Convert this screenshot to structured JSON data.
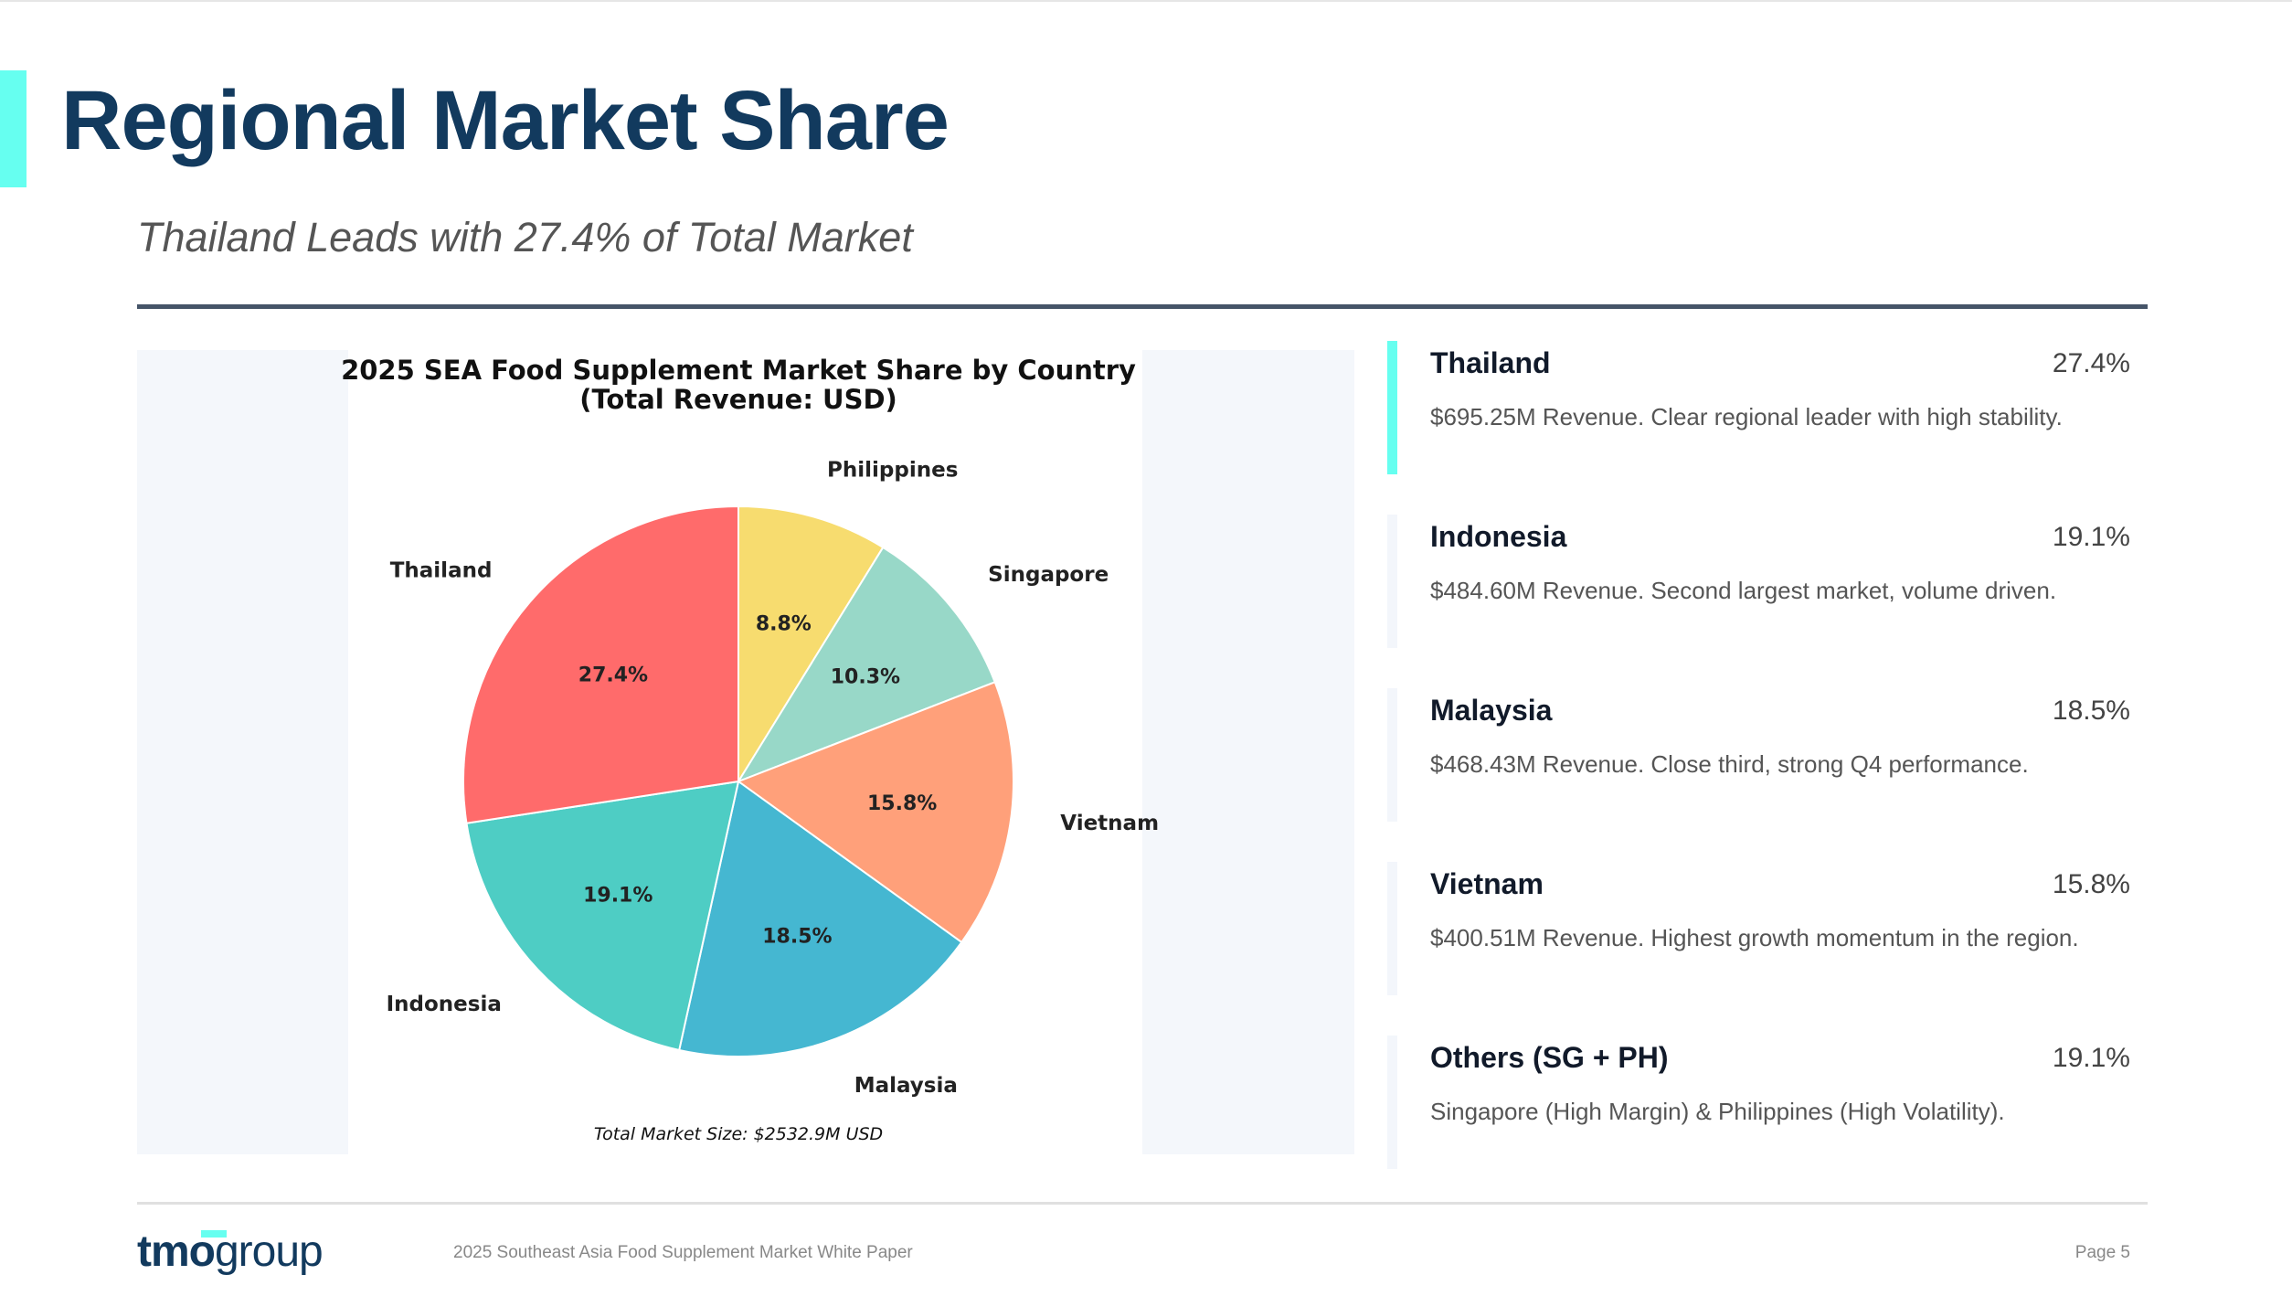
{
  "header": {
    "title": "Regional Market Share",
    "subtitle": "Thailand Leads with 27.4% of Total Market"
  },
  "chart_data": {
    "type": "pie",
    "title": "2025 SEA Food Supplement Market Share by Country",
    "subtitle": "(Total Revenue: USD)",
    "footnote": "Total Market Size: $2532.9M USD",
    "categories": [
      "Philippines",
      "Singapore",
      "Vietnam",
      "Malaysia",
      "Indonesia",
      "Thailand"
    ],
    "values": [
      8.8,
      10.3,
      15.8,
      18.5,
      19.1,
      27.4
    ],
    "labels": [
      "8.8%",
      "10.3%",
      "15.8%",
      "18.5%",
      "19.1%",
      "27.4%"
    ],
    "colors": [
      "#f7dc6f",
      "#98d8c8",
      "#ffa07a",
      "#45b7d1",
      "#4ecdc4",
      "#ff6b6b"
    ],
    "start_angle": 90,
    "direction": "clockwise"
  },
  "cards": [
    {
      "name": "Thailand",
      "pct": "27.4%",
      "desc": "$695.25M Revenue. Clear regional leader with high stability."
    },
    {
      "name": "Indonesia",
      "pct": "19.1%",
      "desc": "$484.60M Revenue. Second largest market, volume driven."
    },
    {
      "name": "Malaysia",
      "pct": "18.5%",
      "desc": "$468.43M Revenue. Close third, strong Q4 performance."
    },
    {
      "name": "Vietnam",
      "pct": "15.8%",
      "desc": "$400.51M Revenue. Highest growth momentum in the region."
    },
    {
      "name": "Others (SG + PH)",
      "pct": "19.1%",
      "desc": "Singapore (High Margin) & Philippines (High Volatility)."
    }
  ],
  "footer": {
    "logo_a": "tmo",
    "logo_b": "group",
    "text": "2025 Southeast Asia Food Supplement Market White Paper",
    "page": "Page 5"
  },
  "colors": {
    "accent": "#66fff0",
    "title": "#123a5e"
  }
}
